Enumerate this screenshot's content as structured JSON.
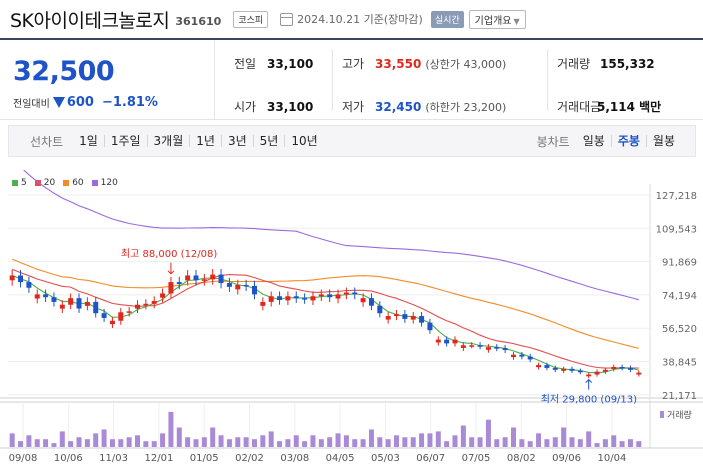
{
  "header": {
    "stock_name": "SK아이이테크놀로지",
    "stock_code": "361610",
    "market": "코스피",
    "date_text": "2024.10.21 기준(장마감)",
    "realtime_label": "실시간",
    "overview_label": "기업개요"
  },
  "summary": {
    "current_price": "32,500",
    "change_label": "전일대비",
    "change_amount": "600",
    "change_rate": "−1.81%",
    "prev_close_label": "전일",
    "prev_close": "33,100",
    "high_label": "고가",
    "high": "33,550",
    "upper_limit": "(상한가 43,000)",
    "volume_label": "거래량",
    "volume": "155,332",
    "open_label": "시가",
    "open": "33,100",
    "low_label": "저가",
    "low": "32,450",
    "lower_limit": "(하한가 23,200)",
    "trade_value_label": "거래대금",
    "trade_value": "5,114 백만"
  },
  "toolbar": {
    "line_chart_label": "선차트",
    "periods": [
      "1일",
      "1주일",
      "3개월",
      "1년",
      "3년",
      "5년",
      "10년"
    ],
    "candle_label": "봉차트",
    "candle_periods": [
      "일봉",
      "주봉",
      "월봉"
    ],
    "active_candle": "주봉"
  },
  "colors": {
    "up": "#e0271e",
    "down": "#1e54c7",
    "ma5": "#4caf50",
    "ma20": "#e34d4d",
    "ma60": "#f28c28",
    "ma120": "#9c6ade",
    "volume": "#a98ad6"
  },
  "chart_data": {
    "type": "candlestick",
    "legend": [
      {
        "name": "5",
        "color": "#4caf50"
      },
      {
        "name": "20",
        "color": "#e34d4d"
      },
      {
        "name": "60",
        "color": "#f28c28"
      },
      {
        "name": "120",
        "color": "#9c6ade"
      }
    ],
    "y_ticks": [
      "127,218",
      "109,543",
      "91,869",
      "74,194",
      "56,520",
      "38,845",
      "21,171"
    ],
    "x_ticks": [
      "09/08",
      "10/06",
      "11/03",
      "12/01",
      "01/05",
      "02/02",
      "03/08",
      "04/05",
      "05/03",
      "06/07",
      "07/05",
      "08/02",
      "09/06",
      "10/04"
    ],
    "high_annotation": "최고 88,000 (12/08)",
    "low_annotation": "최저 29,800 (09/13)",
    "volume_label": "거래량",
    "ylim": [
      21171,
      127218
    ],
    "closes": [
      84000,
      80500,
      77500,
      74000,
      72500,
      70000,
      68500,
      72000,
      66500,
      70000,
      64000,
      61500,
      60000,
      64500,
      65000,
      68500,
      69000,
      70500,
      74500,
      80500,
      79500,
      84000,
      81500,
      82000,
      84500,
      80000,
      78000,
      79000,
      78500,
      74000,
      70000,
      73000,
      71000,
      73000,
      72000,
      71500,
      73000,
      74000,
      72500,
      74000,
      75000,
      74000,
      72000,
      68000,
      64000,
      62500,
      63500,
      61000,
      62500,
      59000,
      55000,
      50000,
      48000,
      50000,
      47000,
      47000,
      46500,
      46000,
      45500,
      44500,
      42000,
      41000,
      39500,
      36500,
      35000,
      34000,
      34500,
      33500,
      32800,
      31500,
      33000,
      34000,
      35500,
      35000,
      34000,
      32500
    ],
    "volume_note": "relative weekly volume, 0-1",
    "volumes": [
      0.35,
      0.15,
      0.3,
      0.2,
      0.2,
      0.1,
      0.4,
      0.15,
      0.25,
      0.2,
      0.35,
      0.45,
      0.2,
      0.2,
      0.25,
      0.3,
      0.15,
      0.15,
      0.35,
      0.9,
      0.5,
      0.25,
      0.2,
      0.25,
      0.5,
      0.3,
      0.2,
      0.25,
      0.25,
      0.2,
      0.3,
      0.4,
      0.15,
      0.2,
      0.3,
      0.15,
      0.3,
      0.2,
      0.25,
      0.35,
      0.3,
      0.2,
      0.2,
      0.45,
      0.25,
      0.2,
      0.3,
      0.25,
      0.25,
      0.35,
      0.35,
      0.4,
      0.15,
      0.3,
      0.55,
      0.25,
      0.25,
      0.7,
      0.2,
      0.25,
      0.5,
      0.2,
      0.15,
      0.35,
      0.2,
      0.25,
      0.5,
      0.25,
      0.2,
      0.4,
      0.1,
      0.2,
      0.3,
      0.15,
      0.2,
      0.15
    ]
  }
}
